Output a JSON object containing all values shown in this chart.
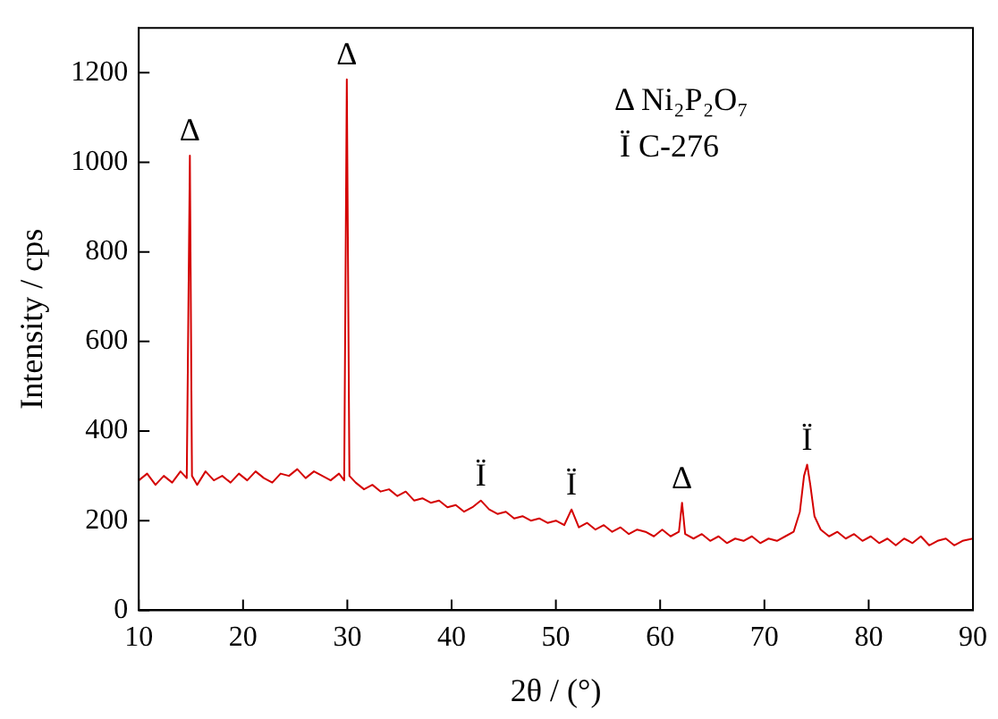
{
  "chart_data": {
    "type": "line",
    "xlabel": "2θ / (°)",
    "ylabel": "Intensity / cps",
    "xlim": [
      10,
      90
    ],
    "xticks": [
      10,
      20,
      30,
      40,
      50,
      60,
      70,
      80,
      90
    ],
    "ylim": [
      0,
      1300
    ],
    "yticks": [
      0,
      200,
      400,
      600,
      800,
      1000,
      1200
    ],
    "grid": false,
    "marker": "none",
    "line_style": "solid",
    "series": [
      {
        "color": "#d40000",
        "x": [
          10,
          10.8,
          11.6,
          12.4,
          13.2,
          14,
          14.6,
          14.9,
          15.1,
          15.6,
          16.4,
          17.2,
          18,
          18.8,
          19.6,
          20.4,
          21.2,
          22,
          22.8,
          23.6,
          24.4,
          25.2,
          26,
          26.8,
          27.6,
          28.4,
          29.2,
          29.7,
          29.95,
          30.2,
          30.8,
          31.6,
          32.4,
          33.2,
          34,
          34.8,
          35.6,
          36.4,
          37.2,
          38,
          38.8,
          39.6,
          40.4,
          41.2,
          42,
          42.8,
          43.6,
          44.4,
          45.2,
          46,
          46.8,
          47.6,
          48.4,
          49.2,
          50,
          50.8,
          51.5,
          52.2,
          53,
          53.8,
          54.6,
          55.4,
          56.2,
          57,
          57.8,
          58.6,
          59.4,
          60.2,
          61,
          61.8,
          62.1,
          62.4,
          63.2,
          64,
          64.8,
          65.6,
          66.4,
          67.2,
          68,
          68.8,
          69.6,
          70.4,
          71.2,
          72,
          72.8,
          73.4,
          73.8,
          74.1,
          74.4,
          74.8,
          75.4,
          76.2,
          77,
          77.8,
          78.6,
          79.4,
          80.2,
          81,
          81.8,
          82.6,
          83.4,
          84.2,
          85,
          85.8,
          86.6,
          87.4,
          88.2,
          89,
          90
        ],
        "values": [
          290,
          305,
          280,
          300,
          285,
          310,
          295,
          1015,
          300,
          280,
          310,
          290,
          300,
          285,
          305,
          290,
          310,
          295,
          285,
          305,
          300,
          315,
          295,
          310,
          300,
          290,
          305,
          290,
          1185,
          300,
          285,
          270,
          280,
          265,
          270,
          255,
          265,
          245,
          250,
          240,
          245,
          230,
          235,
          220,
          230,
          245,
          225,
          215,
          220,
          205,
          210,
          200,
          205,
          195,
          200,
          190,
          225,
          185,
          195,
          180,
          190,
          175,
          185,
          170,
          180,
          175,
          165,
          180,
          165,
          175,
          240,
          170,
          160,
          170,
          155,
          165,
          150,
          160,
          155,
          165,
          150,
          160,
          155,
          165,
          175,
          220,
          300,
          325,
          280,
          210,
          180,
          165,
          175,
          160,
          170,
          155,
          165,
          150,
          160,
          145,
          160,
          150,
          165,
          145,
          155,
          160,
          145,
          155,
          160
        ]
      }
    ],
    "annotations": [
      {
        "text": "Δ",
        "x": 14.9,
        "y": 1015
      },
      {
        "text": "Δ",
        "x": 29.95,
        "y": 1185
      },
      {
        "text": "Ï",
        "x": 42.8,
        "y": 245
      },
      {
        "text": "Ï",
        "x": 51.5,
        "y": 225
      },
      {
        "text": "Δ",
        "x": 62.1,
        "y": 240
      },
      {
        "text": "Ï",
        "x": 74.1,
        "y": 325
      },
      "Δ Ni₂P₂O₇",
      "Ï C-276"
    ]
  }
}
